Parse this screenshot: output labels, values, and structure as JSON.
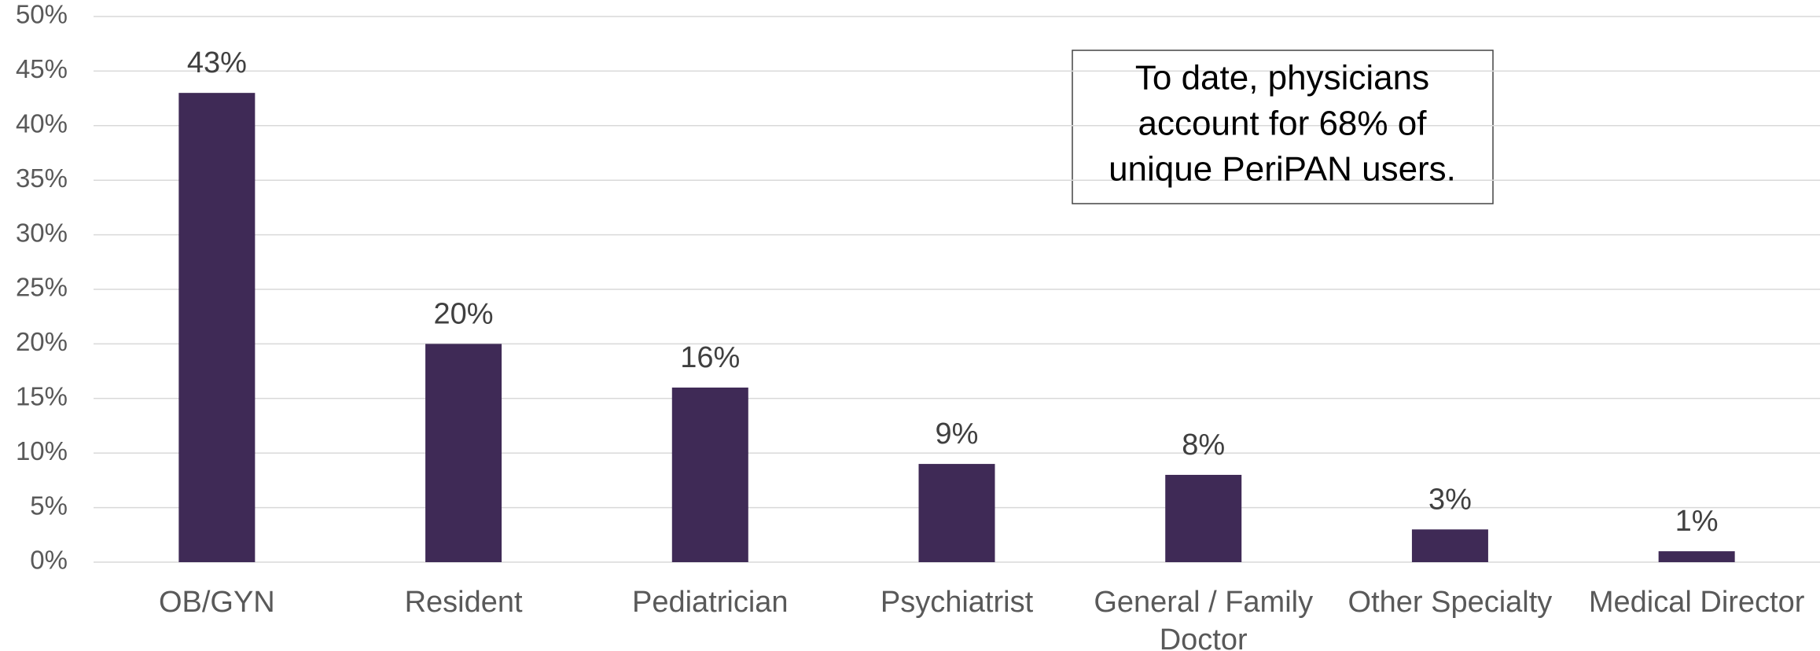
{
  "chart_data": {
    "type": "bar",
    "categories": [
      "OB/GYN",
      "Resident",
      "Pediatrician",
      "Psychiatrist",
      "General / Family Doctor",
      "Other Specialty",
      "Medical Director"
    ],
    "values": [
      43,
      20,
      16,
      9,
      8,
      3,
      1
    ],
    "value_labels": [
      "43%",
      "20%",
      "16%",
      "9%",
      "8%",
      "3%",
      "1%"
    ],
    "color": "#3f2a56",
    "ylim": [
      0,
      50
    ],
    "yticks": [
      {
        "value": 0,
        "label": "0%"
      },
      {
        "value": 5,
        "label": "5%"
      },
      {
        "value": 10,
        "label": "10%"
      },
      {
        "value": 15,
        "label": "15%"
      },
      {
        "value": 20,
        "label": "20%"
      },
      {
        "value": 25,
        "label": "25%"
      },
      {
        "value": 30,
        "label": "30%"
      },
      {
        "value": 35,
        "label": "35%"
      },
      {
        "value": 40,
        "label": "40%"
      },
      {
        "value": 45,
        "label": "45%"
      },
      {
        "value": 50,
        "label": "50%"
      }
    ],
    "grid": true,
    "annotation": [
      "To date, physicians",
      "account for 68% of",
      "unique PeriPAN users."
    ]
  }
}
